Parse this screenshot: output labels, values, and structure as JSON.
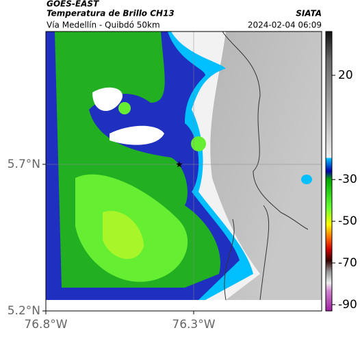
{
  "header": {
    "source": "GOES-EAST",
    "title": "Temperatura de Brillo CH13",
    "brand": "SIATA",
    "subtitle": "Vía Medellín - Quibdó 50km",
    "datetime": "2024-02-04 06:09"
  },
  "map": {
    "xlim": [
      -76.8,
      -75.867
    ],
    "ylim": [
      5.2,
      6.153
    ],
    "xticks": [
      {
        "value": -76.8,
        "label": "76.8°W"
      },
      {
        "value": -76.3,
        "label": "76.3°W"
      }
    ],
    "yticks": [
      {
        "value": 5.2,
        "label": "5.2°N"
      },
      {
        "value": 5.7,
        "label": "5.7°N"
      }
    ]
  },
  "colorbar": {
    "ylim": [
      -93,
      41
    ],
    "ticks": [
      20,
      -30,
      -50,
      -70,
      -90
    ]
  }
}
